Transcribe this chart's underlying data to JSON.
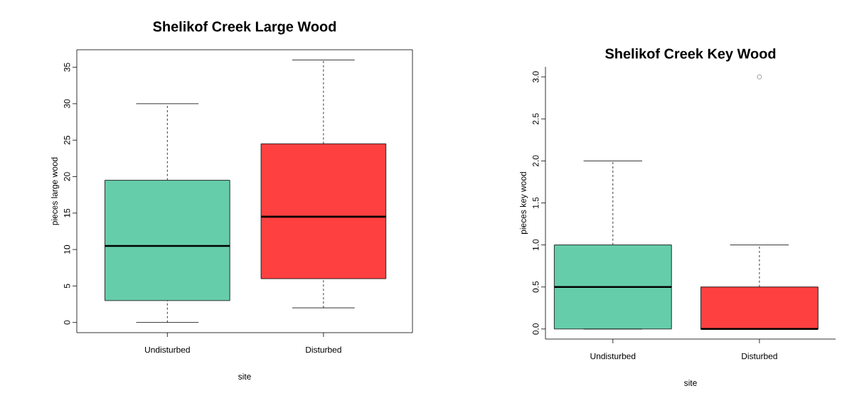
{
  "chart_data": [
    {
      "type": "box",
      "title": "Shelikof Creek Large Wood",
      "xlabel": "site",
      "ylabel": "pieces large wood",
      "categories": [
        "Undisturbed",
        "Disturbed"
      ],
      "colors": [
        "#66cdaa",
        "#ff4040"
      ],
      "boxes": [
        {
          "low": 0,
          "q1": 3,
          "median": 10.5,
          "q3": 19.5,
          "high": 30
        },
        {
          "low": 2,
          "q1": 6,
          "median": 14.5,
          "q3": 24.5,
          "high": 36
        }
      ],
      "ylim": [
        -1.4,
        37.4
      ],
      "yticks": [
        0,
        5,
        10,
        15,
        20,
        25,
        30,
        35
      ]
    },
    {
      "type": "box",
      "title": "Shelikof Creek Key Wood",
      "xlabel": "site",
      "ylabel": "pieces key wood",
      "categories": [
        "Undisturbed",
        "Disturbed"
      ],
      "colors": [
        "#66cdaa",
        "#ff4040"
      ],
      "boxes": [
        {
          "low": 0,
          "q1": 0,
          "median": 0.5,
          "q3": 1,
          "high": 2
        },
        {
          "low": 0,
          "q1": 0,
          "median": 0,
          "q3": 0.5,
          "high": 1,
          "outliers": [
            3
          ]
        }
      ],
      "ylim": [
        -0.12,
        3.12
      ],
      "yticks": [
        {
          "value": 0,
          "label": "0.0"
        },
        {
          "value": 0.5,
          "label": "0.5"
        },
        {
          "value": 1,
          "label": "1.0"
        },
        {
          "value": 1.5,
          "label": "1.5"
        },
        {
          "value": 2,
          "label": "2.0"
        },
        {
          "value": 2.5,
          "label": "2.5"
        },
        {
          "value": 3,
          "label": "3.0"
        }
      ]
    }
  ]
}
